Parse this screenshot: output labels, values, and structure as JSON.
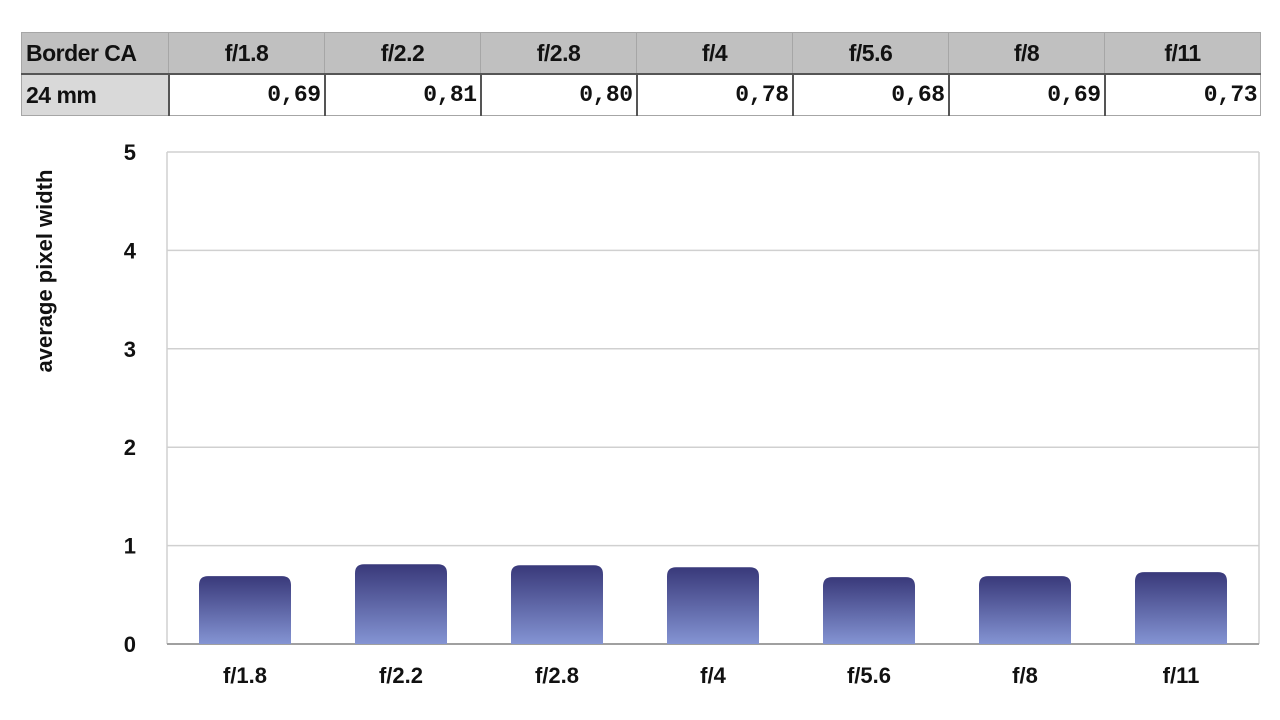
{
  "table": {
    "corner_label": "Border CA",
    "headers": [
      "f/1.8",
      "f/2.2",
      "f/2.8",
      "f/4",
      "f/5.6",
      "f/8",
      "f/11"
    ],
    "row_label": "24 mm",
    "values": [
      "0,69",
      "0,81",
      "0,80",
      "0,78",
      "0,68",
      "0,69",
      "0,73"
    ]
  },
  "chart_data": {
    "type": "bar",
    "categories": [
      "f/1.8",
      "f/2.2",
      "f/2.8",
      "f/4",
      "f/5.6",
      "f/8",
      "f/11"
    ],
    "values": [
      0.69,
      0.81,
      0.8,
      0.78,
      0.68,
      0.69,
      0.73
    ],
    "title": "",
    "xlabel": "",
    "ylabel": "average pixel width",
    "ylim": [
      0,
      5
    ],
    "yticks": [
      0,
      1,
      2,
      3,
      4,
      5
    ],
    "grid": true,
    "legend": "none",
    "colors": {
      "bar_top": "#39397a",
      "bar_bottom": "#8494d3",
      "grid": "#d0d0d0",
      "axis": "#a0a0a0"
    }
  }
}
